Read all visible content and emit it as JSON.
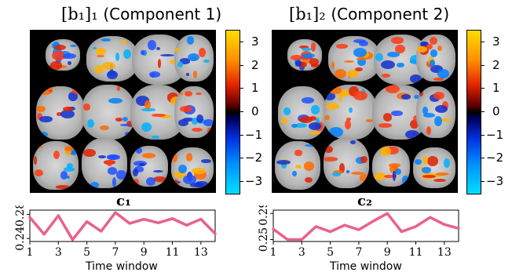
{
  "titles": {
    "left": {
      "math": "[b₁]₁",
      "text": "(Component 1)"
    },
    "right": {
      "math": "[b₁]₂",
      "text": "(Component 2)"
    }
  },
  "colorbar": {
    "ticks": [
      "3",
      "2",
      "1",
      "0",
      "−1",
      "−2",
      "−3"
    ]
  },
  "timeseries": {
    "left": {
      "label": "c₁"
    },
    "right": {
      "label": "c₂"
    }
  },
  "colors": {
    "line": "#e8628a",
    "background": "#000000"
  },
  "chart_data": [
    {
      "type": "line",
      "title": "c₁",
      "xlabel": "Time window",
      "ylabel": "",
      "x": [
        1,
        2,
        3,
        4,
        5,
        6,
        7,
        8,
        9,
        10,
        11,
        12,
        13,
        14
      ],
      "values": [
        0.275,
        0.247,
        0.278,
        0.238,
        0.268,
        0.252,
        0.283,
        0.265,
        0.272,
        0.266,
        0.273,
        0.262,
        0.272,
        0.248
      ],
      "xticks": [
        "1",
        "3",
        "5",
        "7",
        "9",
        "11",
        "13"
      ],
      "yticks": [
        "0.24",
        "0.28"
      ],
      "xlim": [
        1,
        14
      ],
      "ylim": [
        0.235,
        0.287
      ]
    },
    {
      "type": "line",
      "title": "c₂",
      "xlabel": "Time window",
      "ylabel": "",
      "x": [
        1,
        2,
        3,
        4,
        5,
        6,
        7,
        8,
        9,
        10,
        11,
        12,
        13,
        14
      ],
      "values": [
        0.266,
        0.25,
        0.25,
        0.27,
        0.262,
        0.272,
        0.265,
        0.278,
        0.29,
        0.262,
        0.27,
        0.284,
        0.273,
        0.267
      ],
      "xticks": [
        "1",
        "3",
        "5",
        "7",
        "9",
        "11",
        "13"
      ],
      "yticks": [
        "0.25",
        "0.29"
      ],
      "xlim": [
        1,
        14
      ],
      "ylim": [
        0.247,
        0.295
      ]
    }
  ]
}
